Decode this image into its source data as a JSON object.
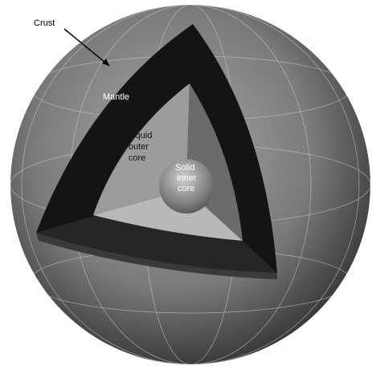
{
  "labels": {
    "crust": [
      "Crust"
    ],
    "mantle": [
      "Mantle"
    ],
    "outer_core": [
      "Liquid",
      "outer",
      "core"
    ],
    "inner_core": [
      "Solid",
      "inner",
      "core"
    ]
  }
}
